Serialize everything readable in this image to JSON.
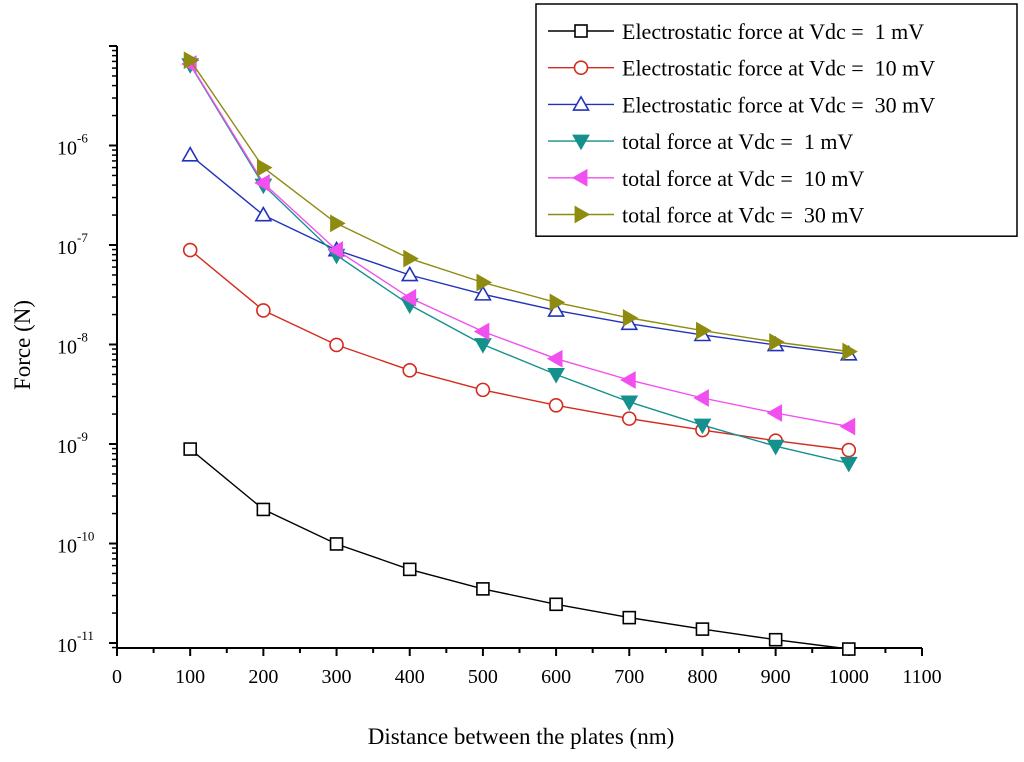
{
  "chart_data": {
    "type": "line",
    "title": "",
    "xlabel": "Distance between the plates (nm)",
    "ylabel": "Force (N)",
    "xlim": [
      0,
      1100
    ],
    "ylim_log10": [
      -11.05,
      -5.0
    ],
    "yscale": "log",
    "x_ticks": [
      0,
      100,
      200,
      300,
      400,
      500,
      600,
      700,
      800,
      900,
      1000,
      1100
    ],
    "y_ticks": [
      {
        "base": "10",
        "exp": "-11",
        "value": -11
      },
      {
        "base": "10",
        "exp": "-10",
        "value": -10
      },
      {
        "base": "10",
        "exp": "-9",
        "value": -9
      },
      {
        "base": "10",
        "exp": "-8",
        "value": -8
      },
      {
        "base": "10",
        "exp": "-7",
        "value": -7
      },
      {
        "base": "10",
        "exp": "-6",
        "value": -6
      }
    ],
    "legend_position": "top-right",
    "x": [
      100,
      200,
      300,
      400,
      500,
      600,
      700,
      800,
      900,
      1000
    ],
    "series": [
      {
        "name": "Electrostatic force at Vdc =  1 mV",
        "color": "#000000",
        "marker": "square",
        "filled": false,
        "values": [
          8.9e-10,
          2.2e-10,
          9.9e-11,
          5.5e-11,
          3.5e-11,
          2.45e-11,
          1.8e-11,
          1.38e-11,
          1.08e-11,
          8.7e-12
        ]
      },
      {
        "name": "Electrostatic force at Vdc =  10 mV",
        "color": "#d42b1e",
        "marker": "circle",
        "filled": false,
        "values": [
          8.9e-08,
          2.2e-08,
          9.9e-09,
          5.5e-09,
          3.5e-09,
          2.45e-09,
          1.8e-09,
          1.38e-09,
          1.08e-09,
          8.7e-10
        ]
      },
      {
        "name": "Electrostatic force at Vdc =  30 mV",
        "color": "#2233bb",
        "marker": "triangle-up",
        "filled": false,
        "values": [
          8e-07,
          2e-07,
          8.9e-08,
          5e-08,
          3.2e-08,
          2.2e-08,
          1.62e-08,
          1.25e-08,
          9.9e-09,
          8e-09
        ]
      },
      {
        "name": "total force at Vdc =  1 mV",
        "color": "#14918c",
        "marker": "triangle-down",
        "filled": true,
        "values": [
          6.5e-06,
          4e-07,
          7.9e-08,
          2.5e-08,
          1e-08,
          5e-09,
          2.65e-09,
          1.55e-09,
          9.5e-10,
          6.4e-10
        ]
      },
      {
        "name": "total force at Vdc =  10 mV",
        "color": "#f14ff0",
        "marker": "triangle-left",
        "filled": true,
        "values": [
          6.6e-06,
          4.2e-07,
          8.9e-08,
          2.95e-08,
          1.35e-08,
          7.2e-09,
          4.4e-09,
          2.9e-09,
          2.05e-09,
          1.5e-09
        ]
      },
      {
        "name": "total force at Vdc =  30 mV",
        "color": "#8e8c10",
        "marker": "triangle-right",
        "filled": true,
        "values": [
          7.2e-06,
          6e-07,
          1.65e-07,
          7.3e-08,
          4.2e-08,
          2.65e-08,
          1.85e-08,
          1.38e-08,
          1.06e-08,
          8.5e-09
        ]
      }
    ]
  }
}
